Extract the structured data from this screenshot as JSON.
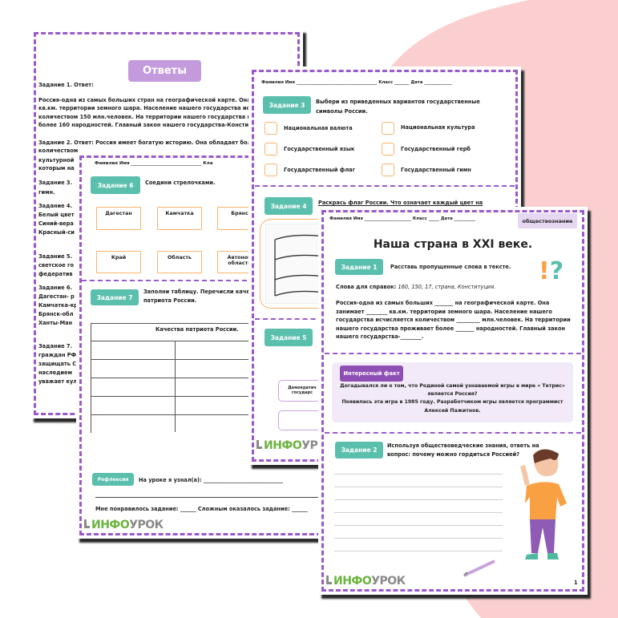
{
  "colors": {
    "accent_teal": "#5bbfad",
    "border_purple": "#9b59c9",
    "checkbox_orange": "#f9b36b",
    "fact_purple": "#8e4fb5",
    "background_pink": "#fbcfcf"
  },
  "answers_page": {
    "title": "Ответы",
    "lines": [
      "Задание 1. Ответ:",
      "Россия-одна из самых больших стран на географической карте. Она за",
      "кв.км. территории земного шара. Население нашего государства исч",
      "количеством 150 млн.человек. На территории нашего государства про",
      "более 160 народностей. Главный закон нашего государства-Конститу",
      "Задание 2. Ответ: Россия имеет богатую историю. Она обладает боль",
      "количеством",
      "культурной",
      "которым на",
      "Задание 3.",
      "гимн.",
      "Задание 4.",
      "Белый цвет",
      "Синий-вера",
      "Красный-си",
      "Задание 5.",
      "светское го",
      "федератив",
      "Задание 6.",
      "Дагестан- р",
      "Камчатка-кр",
      "Брянск-обл",
      "Ханты-Ман",
      "Задание 7.",
      "граждан РФ",
      "защищать С",
      "наследием",
      "уважает кул"
    ]
  },
  "page_tasks_6_7": {
    "header": "Фамилия Имя ________________________________ Кла",
    "task6": {
      "badge": "Задание 6",
      "text": "Соедини стрелочками.",
      "row1": [
        "Дагестан",
        "Камчатка",
        "Брянс"
      ],
      "row2": [
        "Край",
        "Область",
        "Автоном области"
      ]
    },
    "task7": {
      "badge": "Задание 7",
      "text_line1": "Заполни таблицу. Перечисли качес",
      "text_line2": "патриота России.",
      "table_header": "Качества патриота России."
    },
    "reflection": {
      "badge": "Рефлексия",
      "learned": "На уроке я узнал(а): ______________________________",
      "liked": "Мне понравилось задание: ______  Сложным оказалось задание: ______"
    },
    "logo": {
      "part1": "ИНФО",
      "part2": "УРОК"
    }
  },
  "page_tasks_3_5": {
    "header": "Фамилия Имя ______________________________________ Класс _______ Дата _____________",
    "task3": {
      "badge": "Задание 3",
      "text_line1": "Выбери из приведенных вариантов государственные",
      "text_line2": "символы России.",
      "options": [
        "Национальная валюта",
        "Национальная культура",
        "Государственный язык",
        "Государственный герб",
        "Государственный флаг",
        "Государственный гимн"
      ]
    },
    "task4": {
      "badge": "Задание 4",
      "text": "Раскрась флаг России. Что означает каждый цвет на"
    },
    "task5": {
      "badge": "Задание 5",
      "box1_line1": "Демократич",
      "box1_line2": "государс"
    },
    "logo": {
      "part1": "ИНФО",
      "part2": "УР"
    }
  },
  "main_page": {
    "header": "Фамилия Имя ______________________ Класс _____ Дата __________",
    "subject_badge": "обществознание",
    "title": "Наша страна в XXI веке.",
    "task1": {
      "badge": "Задание 1",
      "instruction": "Расставь пропущенные слова в тексте.",
      "hint_label": "Слова для справок:",
      "hint_words": "160, 150, 17, страна, Конституция.",
      "paragraph": [
        "Россия-одна из самых больших _______ на географической карте. Она",
        "занимает ________ кв.км. территории земного шара. Население нашего",
        "государства исчисляется количеством _________ млн.человек. На территории",
        "нашего государства проживает более _______ народностей. Главный закон",
        "нашего государства-________."
      ]
    },
    "fact": {
      "badge": "Интересный факт",
      "lines": [
        "Догадывался ли о том, что Родиной самой узнаваемой игры в мире « Тетрис»",
        "является Россия?",
        "Появилась эта игра в 1985 году. Разработчиком игры является программист",
        "Алексей Пажитнов."
      ]
    },
    "task2": {
      "badge": "Задание 2",
      "line1": "Используя обществоведческие знания, ответь на",
      "line2": "вопрос: почему можно гордиться Россией?"
    },
    "logo": {
      "part1": "ИНФО",
      "part2": "УРОК"
    },
    "page_number": "1",
    "icons": [
      "exclamation-question-icon",
      "boy-illustration",
      "pencil-icon"
    ]
  }
}
